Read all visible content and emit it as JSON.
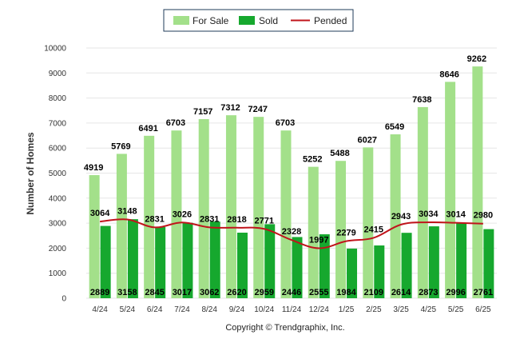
{
  "chart_data": {
    "type": "bar",
    "categories": [
      "4/24",
      "5/24",
      "6/24",
      "7/24",
      "8/24",
      "9/24",
      "10/24",
      "11/24",
      "12/24",
      "1/25",
      "2/25",
      "3/25",
      "4/25",
      "5/25",
      "6/25"
    ],
    "series": [
      {
        "name": "For Sale",
        "type": "bar",
        "color": "#a3e08a",
        "values": [
          4919,
          5769,
          6491,
          6703,
          7157,
          7312,
          7247,
          6703,
          5252,
          5488,
          6027,
          6549,
          7638,
          8646,
          9262
        ]
      },
      {
        "name": "Sold",
        "type": "bar",
        "color": "#16a82e",
        "values": [
          2889,
          3158,
          2845,
          3017,
          3062,
          2620,
          2959,
          2446,
          2555,
          1984,
          2109,
          2614,
          2873,
          2996,
          2761
        ]
      },
      {
        "name": "Pended",
        "type": "line",
        "color": "#c0141b",
        "values": [
          3064,
          3148,
          2831,
          3026,
          2831,
          2818,
          2771,
          2328,
          1997,
          2279,
          2415,
          2943,
          3034,
          3014,
          2980
        ]
      }
    ],
    "ylabel": "Number of Homes",
    "xlabel": "",
    "ylim": [
      0,
      10000
    ],
    "yticks": [
      0,
      1000,
      2000,
      3000,
      4000,
      5000,
      6000,
      7000,
      8000,
      9000,
      10000
    ],
    "legend_position": "top-center",
    "grid": true
  },
  "footer": {
    "copyright": "Copyright © Trendgraphix, Inc."
  }
}
